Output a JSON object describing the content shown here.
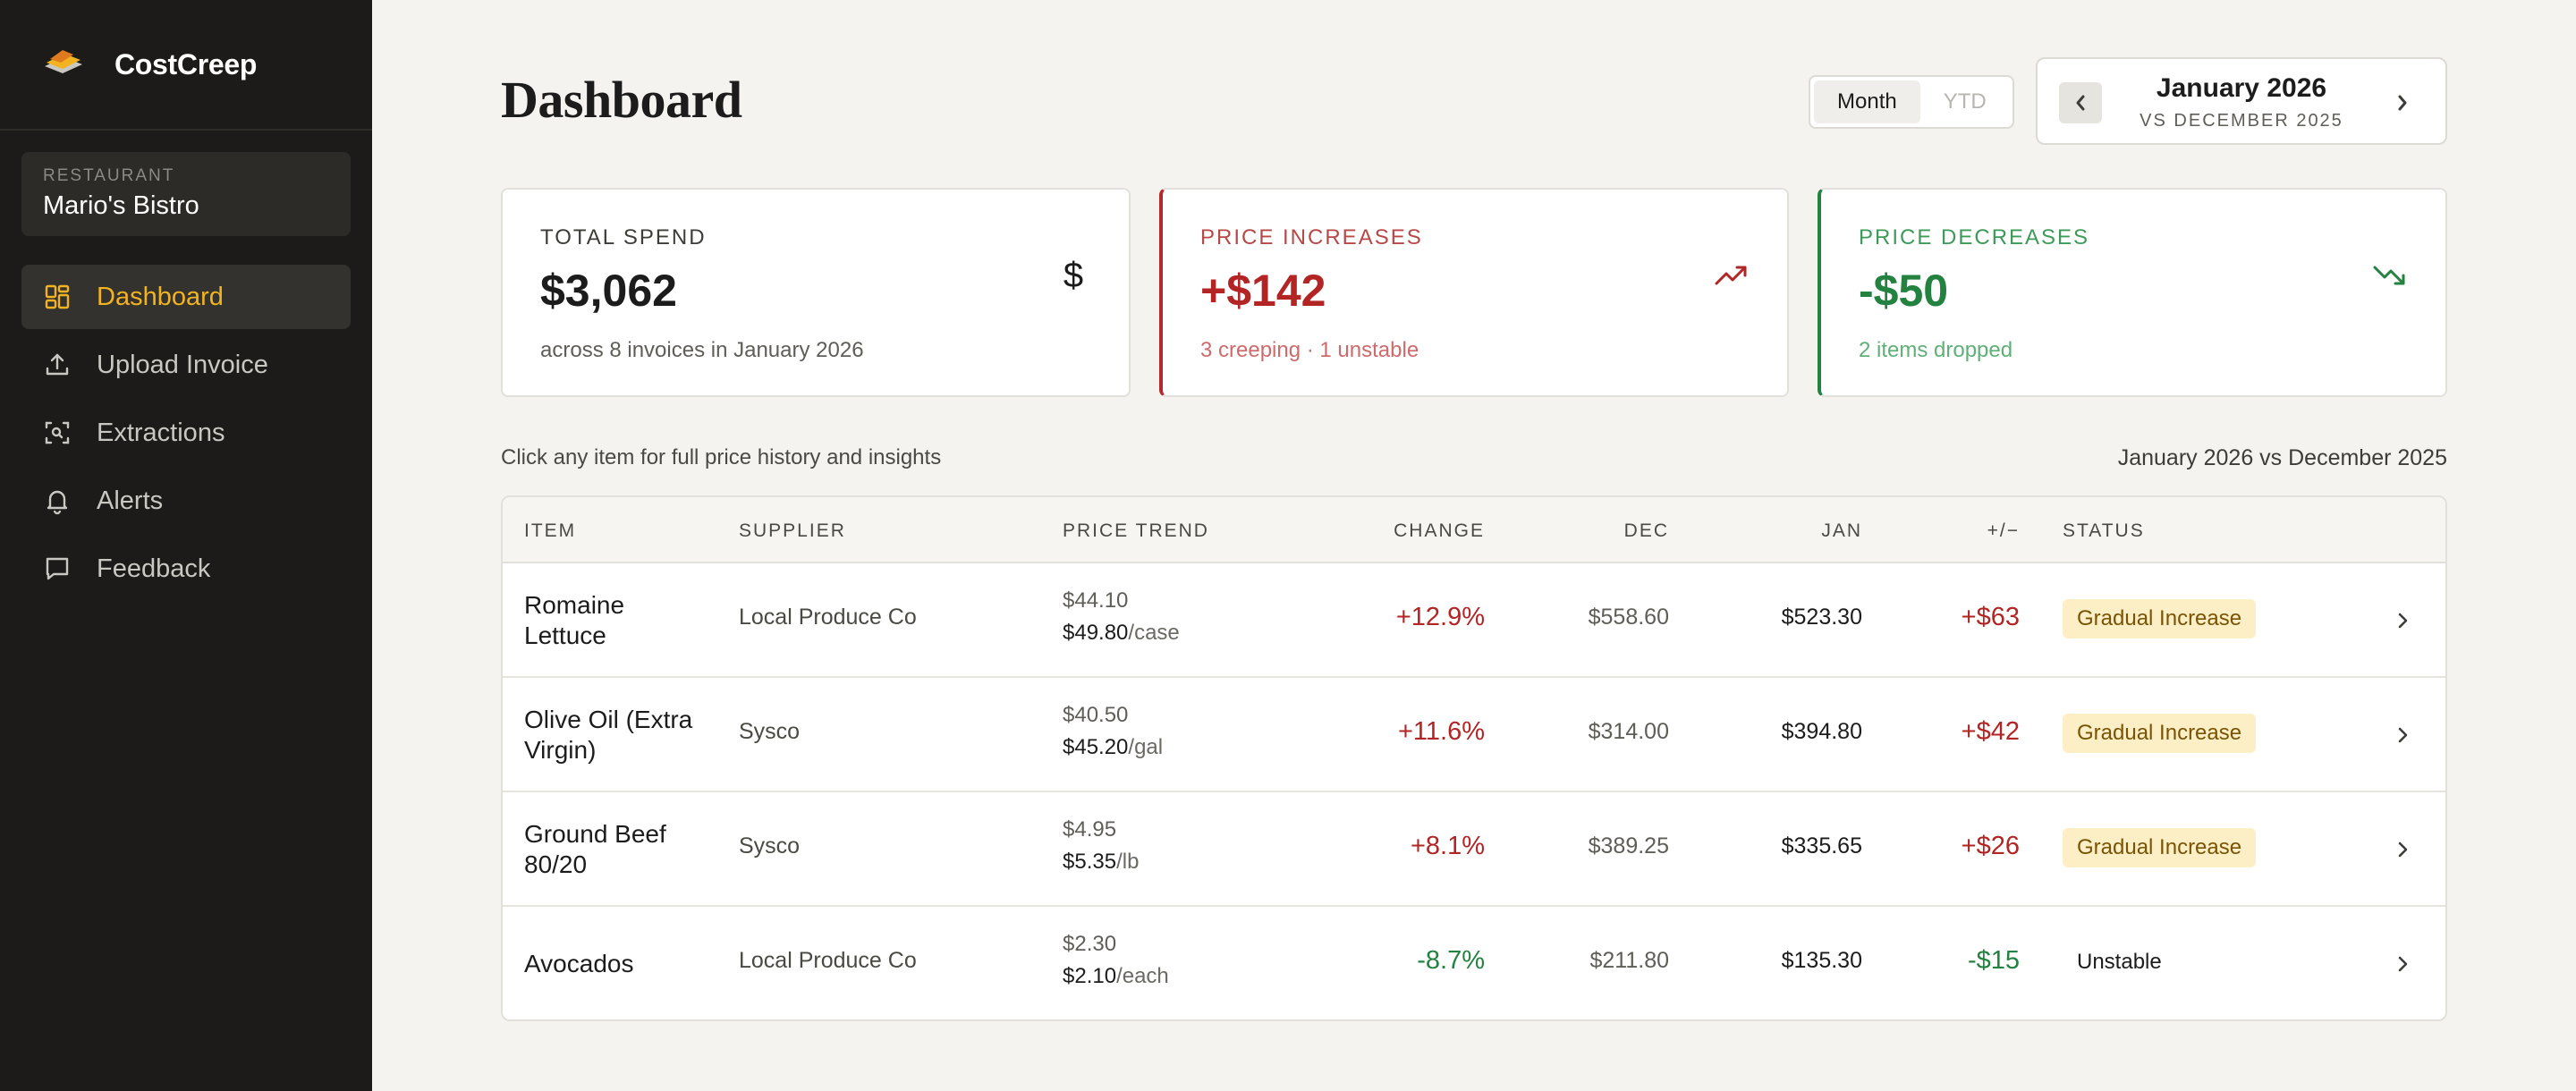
{
  "app": {
    "name": "CostCreep"
  },
  "restaurant": {
    "label": "RESTAURANT",
    "name": "Mario's Bistro"
  },
  "nav": [
    {
      "label": "Dashboard",
      "icon": "dashboard-grid-icon",
      "active": true
    },
    {
      "label": "Upload Invoice",
      "icon": "upload-icon",
      "active": false
    },
    {
      "label": "Extractions",
      "icon": "scan-icon",
      "active": false
    },
    {
      "label": "Alerts",
      "icon": "bell-icon",
      "active": false
    },
    {
      "label": "Feedback",
      "icon": "message-icon",
      "active": false
    }
  ],
  "header": {
    "title": "Dashboard",
    "toggle": {
      "month": "Month",
      "ytd": "YTD",
      "selected": "Month"
    },
    "period": {
      "title": "January 2026",
      "compare": "VS DECEMBER 2025"
    }
  },
  "cards": {
    "total": {
      "label": "TOTAL SPEND",
      "value": "$3,062",
      "sub": "across 8 invoices in January 2026",
      "icon": "dollar-icon"
    },
    "increases": {
      "label": "PRICE INCREASES",
      "value": "+$142",
      "sub": "3 creeping · 1 unstable",
      "icon": "trend-up-icon"
    },
    "decreases": {
      "label": "PRICE DECREASES",
      "value": "-$50",
      "sub": "2 items dropped",
      "icon": "trend-down-icon"
    }
  },
  "table_meta": {
    "hint": "Click any item for full price history and insights",
    "compare": "January 2026 vs December 2025"
  },
  "table": {
    "headers": {
      "item": "ITEM",
      "supplier": "SUPPLIER",
      "trend": "PRICE TREND",
      "change": "CHANGE",
      "dec": "DEC",
      "jan": "JAN",
      "diff": "+/−",
      "status": "STATUS"
    },
    "rows": [
      {
        "item": "Romaine Lettuce",
        "supplier": "Local Produce Co",
        "old_price": "$44.10",
        "new_price": "$49.80",
        "unit": "/case",
        "change": "+12.9%",
        "dec": "$558.60",
        "jan": "$523.30",
        "diff": "+$63",
        "status": "Gradual Increase",
        "direction": "up",
        "badge": true
      },
      {
        "item": "Olive Oil (Extra Virgin)",
        "supplier": "Sysco",
        "old_price": "$40.50",
        "new_price": "$45.20",
        "unit": "/gal",
        "change": "+11.6%",
        "dec": "$314.00",
        "jan": "$394.80",
        "diff": "+$42",
        "status": "Gradual Increase",
        "direction": "up",
        "badge": true
      },
      {
        "item": "Ground Beef 80/20",
        "supplier": "Sysco",
        "old_price": "$4.95",
        "new_price": "$5.35",
        "unit": "/lb",
        "change": "+8.1%",
        "dec": "$389.25",
        "jan": "$335.65",
        "diff": "+$26",
        "status": "Gradual Increase",
        "direction": "up",
        "badge": true
      },
      {
        "item": "Avocados",
        "supplier": "Local Produce Co",
        "old_price": "$2.30",
        "new_price": "$2.10",
        "unit": "/each",
        "change": "-8.7%",
        "dec": "$211.80",
        "jan": "$135.30",
        "diff": "-$15",
        "status": "Unstable",
        "direction": "down",
        "badge": false
      }
    ]
  },
  "colors": {
    "accent": "#f2b320",
    "increase": "#b32424",
    "decrease": "#23823f",
    "sidebar": "#1c1b19"
  }
}
